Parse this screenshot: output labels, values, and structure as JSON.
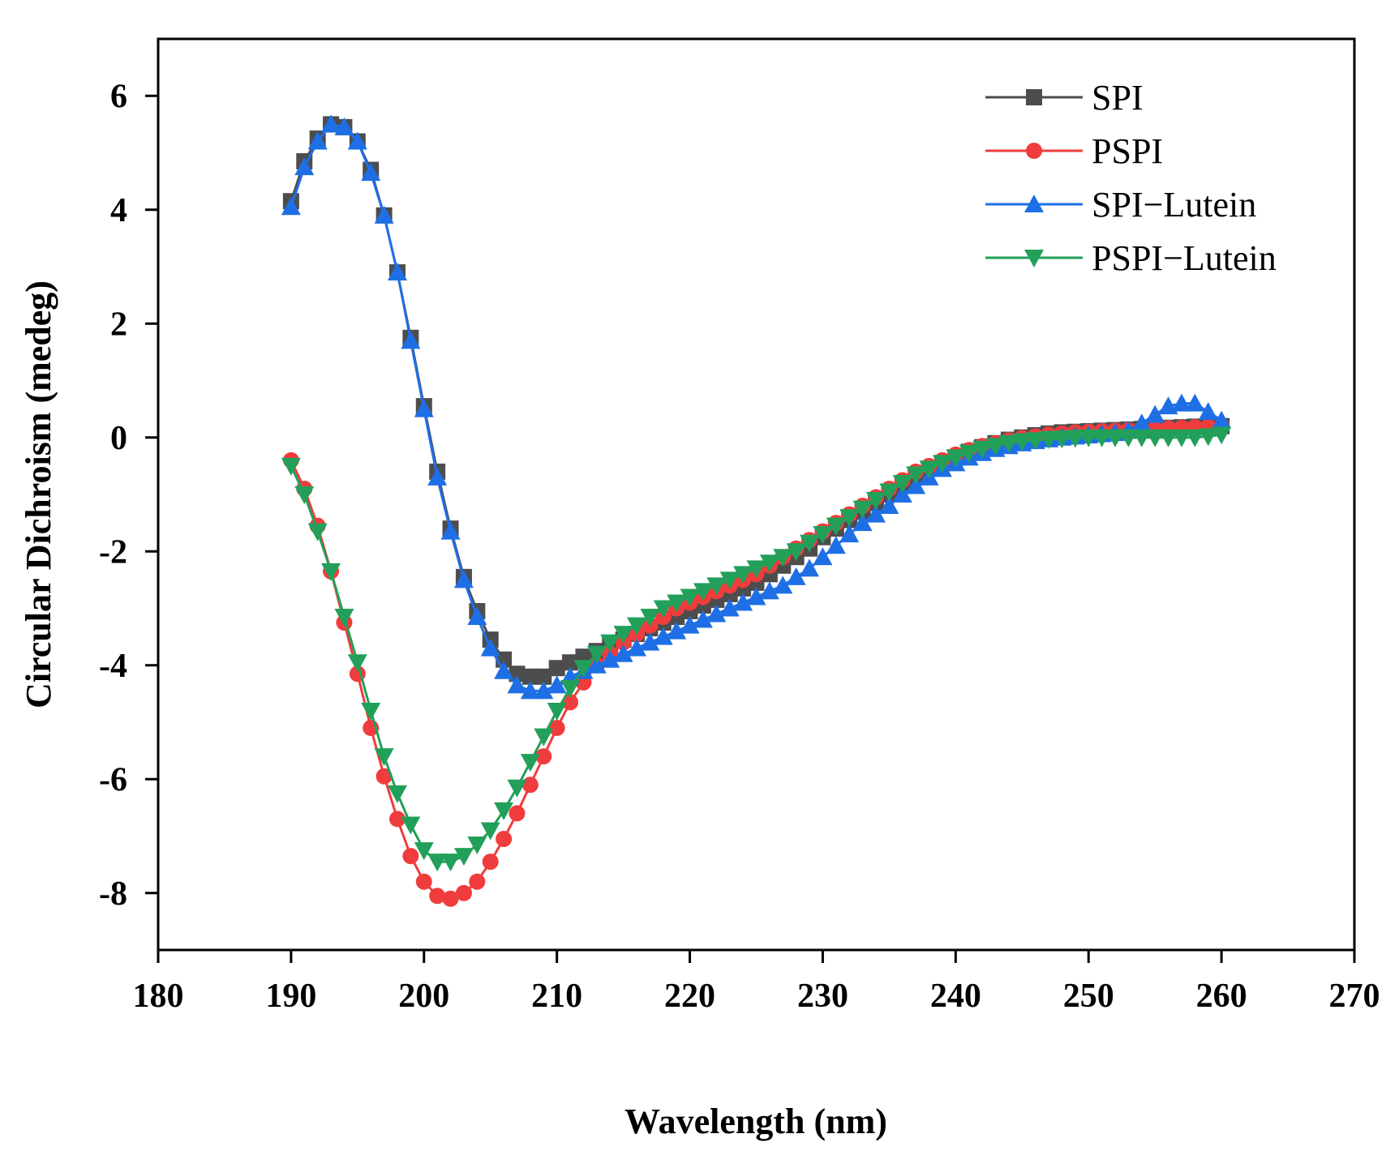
{
  "chart_data": {
    "type": "line",
    "title": "",
    "xlabel": "Wavelength (nm)",
    "ylabel": "Circular Dichroism (medeg)",
    "xlim": [
      180,
      270
    ],
    "ylim": [
      -9,
      7
    ],
    "xticks": [
      180,
      190,
      200,
      210,
      220,
      230,
      240,
      250,
      260,
      270
    ],
    "yticks": [
      -8,
      -6,
      -4,
      -2,
      0,
      2,
      4,
      6
    ],
    "grid": false,
    "legend_position": "top-right",
    "x": [
      190,
      191,
      192,
      193,
      194,
      195,
      196,
      197,
      198,
      199,
      200,
      201,
      202,
      203,
      204,
      205,
      206,
      207,
      208,
      209,
      210,
      211,
      212,
      213,
      214,
      215,
      216,
      217,
      218,
      219,
      220,
      221,
      222,
      223,
      224,
      225,
      226,
      227,
      228,
      229,
      230,
      231,
      232,
      233,
      234,
      235,
      236,
      237,
      238,
      239,
      240,
      241,
      242,
      243,
      244,
      245,
      246,
      247,
      248,
      249,
      250,
      251,
      252,
      253,
      254,
      255,
      256,
      257,
      258,
      259,
      260
    ],
    "series": [
      {
        "name": "SPI",
        "color": "#4d4d4d",
        "marker": "square",
        "values": [
          4.15,
          4.85,
          5.25,
          5.5,
          5.45,
          5.2,
          4.7,
          3.9,
          2.9,
          1.75,
          0.55,
          -0.6,
          -1.6,
          -2.45,
          -3.05,
          -3.55,
          -3.9,
          -4.15,
          -4.2,
          -4.2,
          -4.05,
          -3.95,
          -3.85,
          -3.75,
          -3.65,
          -3.55,
          -3.45,
          -3.35,
          -3.25,
          -3.15,
          -3.05,
          -2.95,
          -2.85,
          -2.75,
          -2.65,
          -2.55,
          -2.4,
          -2.25,
          -2.1,
          -1.95,
          -1.75,
          -1.6,
          -1.45,
          -1.3,
          -1.15,
          -1.0,
          -0.85,
          -0.7,
          -0.55,
          -0.45,
          -0.35,
          -0.25,
          -0.17,
          -0.1,
          -0.04,
          0.0,
          0.04,
          0.07,
          0.09,
          0.1,
          0.11,
          0.12,
          0.13,
          0.14,
          0.15,
          0.16,
          0.17,
          0.18,
          0.19,
          0.2,
          0.2
        ]
      },
      {
        "name": "PSPI",
        "color": "#f03c3c",
        "marker": "circle",
        "values": [
          -0.4,
          -0.9,
          -1.55,
          -2.35,
          -3.25,
          -4.15,
          -5.1,
          -5.95,
          -6.7,
          -7.35,
          -7.8,
          -8.05,
          -8.1,
          -8.0,
          -7.8,
          -7.45,
          -7.05,
          -6.6,
          -6.1,
          -5.6,
          -5.1,
          -4.65,
          -4.3,
          -4.0,
          -3.8,
          -3.6,
          -3.45,
          -3.3,
          -3.15,
          -3.0,
          -2.9,
          -2.8,
          -2.7,
          -2.6,
          -2.5,
          -2.4,
          -2.25,
          -2.1,
          -1.95,
          -1.8,
          -1.65,
          -1.5,
          -1.35,
          -1.2,
          -1.05,
          -0.9,
          -0.75,
          -0.6,
          -0.5,
          -0.4,
          -0.3,
          -0.22,
          -0.15,
          -0.1,
          -0.05,
          -0.01,
          0.02,
          0.05,
          0.07,
          0.09,
          0.1,
          0.11,
          0.12,
          0.13,
          0.14,
          0.15,
          0.16,
          0.17,
          0.18,
          0.19,
          0.2
        ]
      },
      {
        "name": "SPI−Lutein",
        "color": "#1e6fe6",
        "marker": "triangle-up",
        "values": [
          4.05,
          4.75,
          5.2,
          5.5,
          5.45,
          5.2,
          4.65,
          3.9,
          2.9,
          1.7,
          0.5,
          -0.7,
          -1.65,
          -2.5,
          -3.15,
          -3.7,
          -4.1,
          -4.35,
          -4.45,
          -4.45,
          -4.35,
          -4.2,
          -4.1,
          -4.0,
          -3.9,
          -3.8,
          -3.7,
          -3.6,
          -3.5,
          -3.4,
          -3.3,
          -3.2,
          -3.1,
          -3.0,
          -2.9,
          -2.8,
          -2.7,
          -2.6,
          -2.45,
          -2.3,
          -2.1,
          -1.9,
          -1.7,
          -1.5,
          -1.35,
          -1.2,
          -1.0,
          -0.85,
          -0.7,
          -0.55,
          -0.45,
          -0.35,
          -0.27,
          -0.2,
          -0.15,
          -0.1,
          -0.06,
          -0.03,
          0.0,
          0.02,
          0.04,
          0.06,
          0.08,
          0.12,
          0.25,
          0.4,
          0.55,
          0.6,
          0.6,
          0.45,
          0.3
        ]
      },
      {
        "name": "PSPI−Lutein",
        "color": "#22a05a",
        "marker": "triangle-down",
        "values": [
          -0.5,
          -1.0,
          -1.65,
          -2.35,
          -3.15,
          -3.95,
          -4.8,
          -5.6,
          -6.25,
          -6.8,
          -7.25,
          -7.45,
          -7.45,
          -7.35,
          -7.15,
          -6.9,
          -6.55,
          -6.15,
          -5.7,
          -5.25,
          -4.8,
          -4.4,
          -4.05,
          -3.8,
          -3.6,
          -3.45,
          -3.3,
          -3.15,
          -3.0,
          -2.9,
          -2.8,
          -2.7,
          -2.6,
          -2.5,
          -2.4,
          -2.3,
          -2.2,
          -2.1,
          -2.0,
          -1.85,
          -1.7,
          -1.55,
          -1.4,
          -1.25,
          -1.1,
          -0.95,
          -0.8,
          -0.65,
          -0.55,
          -0.45,
          -0.35,
          -0.27,
          -0.2,
          -0.15,
          -0.1,
          -0.07,
          -0.05,
          -0.03,
          -0.02,
          -0.01,
          0.0,
          0.0,
          0.0,
          0.0,
          0.0,
          0.0,
          0.0,
          0.0,
          0.0,
          0.02,
          0.05
        ]
      }
    ]
  }
}
